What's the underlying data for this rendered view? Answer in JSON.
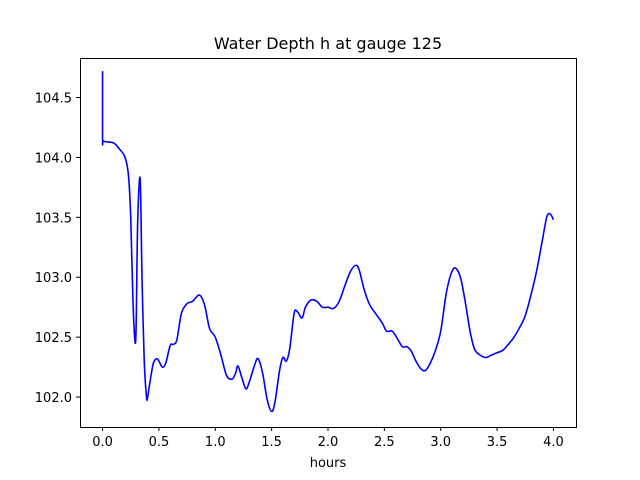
{
  "chart_data": {
    "type": "line",
    "title": "Water Depth h at gauge 125",
    "xlabel": "hours",
    "ylabel": "",
    "xlim": [
      -0.2,
      4.2
    ],
    "ylim": [
      101.75,
      104.83
    ],
    "xticks": [
      0.0,
      0.5,
      1.0,
      1.5,
      2.0,
      2.5,
      3.0,
      3.5,
      4.0
    ],
    "xtick_labels": [
      "0.0",
      "0.5",
      "1.0",
      "1.5",
      "2.0",
      "2.5",
      "3.0",
      "3.5",
      "4.0"
    ],
    "yticks": [
      102.0,
      102.5,
      103.0,
      103.5,
      104.0,
      104.5
    ],
    "ytick_labels": [
      "102.0",
      "102.5",
      "103.0",
      "103.5",
      "104.0",
      "104.5"
    ],
    "grid": false,
    "legend": "none",
    "line_color": "#0000ff",
    "series": [
      {
        "x": [
          0.0,
          0.0,
          0.005,
          0.03,
          0.1,
          0.15,
          0.2,
          0.23,
          0.25,
          0.27,
          0.29,
          0.3,
          0.31,
          0.33,
          0.34,
          0.35,
          0.37,
          0.39,
          0.4,
          0.42,
          0.45,
          0.48,
          0.5,
          0.53,
          0.56,
          0.6,
          0.63,
          0.66,
          0.7,
          0.75,
          0.8,
          0.85,
          0.88,
          0.91,
          0.95,
          1.0,
          1.05,
          1.1,
          1.15,
          1.18,
          1.2,
          1.23,
          1.27,
          1.3,
          1.35,
          1.38,
          1.42,
          1.46,
          1.5,
          1.53,
          1.57,
          1.6,
          1.63,
          1.66,
          1.7,
          1.73,
          1.77,
          1.8,
          1.85,
          1.9,
          1.95,
          2.0,
          2.05,
          2.1,
          2.15,
          2.2,
          2.25,
          2.28,
          2.32,
          2.37,
          2.42,
          2.48,
          2.52,
          2.57,
          2.62,
          2.66,
          2.7,
          2.74,
          2.78,
          2.82,
          2.86,
          2.9,
          2.95,
          3.0,
          3.05,
          3.1,
          3.14,
          3.18,
          3.22,
          3.26,
          3.3,
          3.35,
          3.4,
          3.45,
          3.5,
          3.55,
          3.6,
          3.65,
          3.7,
          3.75,
          3.8,
          3.85,
          3.9,
          3.94,
          3.97,
          4.0
        ],
        "y": [
          104.72,
          104.15,
          104.14,
          104.13,
          104.12,
          104.07,
          104.0,
          103.85,
          103.5,
          102.8,
          102.45,
          102.7,
          103.4,
          103.83,
          103.6,
          103.0,
          102.3,
          102.0,
          102.0,
          102.12,
          102.28,
          102.32,
          102.3,
          102.25,
          102.28,
          102.43,
          102.44,
          102.48,
          102.7,
          102.78,
          102.8,
          102.85,
          102.83,
          102.75,
          102.57,
          102.5,
          102.35,
          102.18,
          102.15,
          102.2,
          102.26,
          102.18,
          102.07,
          102.12,
          102.27,
          102.32,
          102.2,
          101.98,
          101.88,
          101.96,
          102.22,
          102.33,
          102.3,
          102.4,
          102.7,
          102.71,
          102.66,
          102.75,
          102.81,
          102.8,
          102.75,
          102.75,
          102.74,
          102.8,
          102.93,
          103.05,
          103.1,
          103.05,
          102.9,
          102.77,
          102.7,
          102.62,
          102.55,
          102.55,
          102.48,
          102.42,
          102.42,
          102.38,
          102.3,
          102.24,
          102.22,
          102.27,
          102.38,
          102.55,
          102.87,
          103.05,
          103.07,
          102.98,
          102.78,
          102.55,
          102.4,
          102.35,
          102.33,
          102.35,
          102.37,
          102.39,
          102.44,
          102.5,
          102.58,
          102.68,
          102.85,
          103.05,
          103.3,
          103.5,
          103.53,
          103.48
        ]
      }
    ]
  }
}
